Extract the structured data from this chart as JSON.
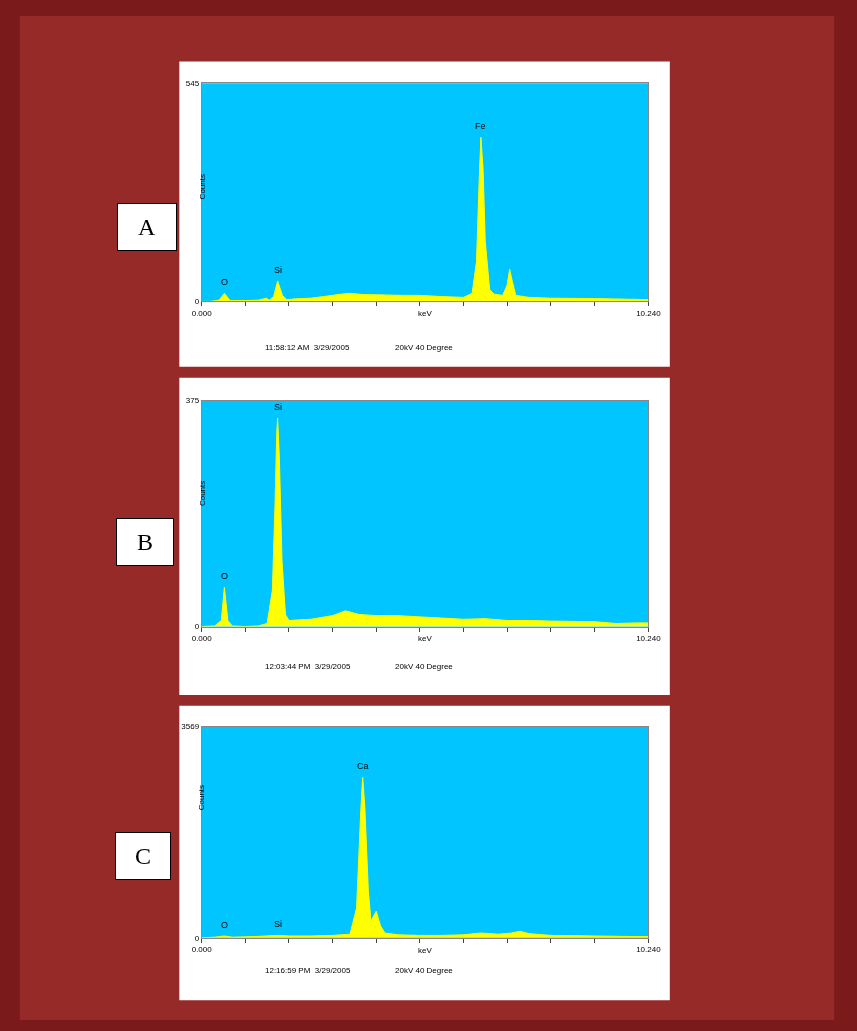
{
  "chart_data": [
    {
      "type": "area",
      "title": "A",
      "xlabel": "keV",
      "ylabel": "Counts",
      "color": "#ffff00",
      "x": [
        0,
        0.2,
        0.4,
        0.52,
        0.65,
        1.0,
        1.3,
        1.48,
        1.55,
        1.65,
        1.74,
        1.85,
        1.95,
        2.1,
        2.5,
        2.8,
        3.2,
        3.4,
        3.7,
        4.2,
        4.6,
        5.0,
        5.5,
        6.0,
        6.2,
        6.3,
        6.36,
        6.4,
        6.45,
        6.5,
        6.6,
        6.7,
        6.9,
        7.0,
        7.06,
        7.12,
        7.2,
        7.5,
        8.0,
        9.0,
        10.0,
        10.24
      ],
      "values": [
        0,
        0,
        3,
        20,
        2,
        2,
        3,
        8,
        3,
        12,
        51,
        15,
        4,
        6,
        8,
        12,
        18,
        20,
        17,
        16,
        15,
        15,
        12,
        10,
        20,
        100,
        300,
        410,
        330,
        150,
        30,
        18,
        15,
        40,
        80,
        50,
        15,
        10,
        8,
        7,
        5,
        4
      ],
      "xlim": [
        0,
        10.24
      ],
      "ylim": [
        0,
        545
      ],
      "xticks": [
        {
          "value": 0,
          "label": "0.000"
        },
        {
          "value": 1,
          "label": null
        },
        {
          "value": 2,
          "label": null
        },
        {
          "value": 3,
          "label": null
        },
        {
          "value": 4,
          "label": null
        },
        {
          "value": 5,
          "label": null
        },
        {
          "value": 6,
          "label": null
        },
        {
          "value": 7,
          "label": null
        },
        {
          "value": 8,
          "label": null
        },
        {
          "value": 9,
          "label": null
        },
        {
          "value": 10.24,
          "label": "10.240"
        }
      ],
      "yticks": [
        0,
        545
      ],
      "annotations": [
        {
          "text": "O",
          "x": 0.52,
          "y": 20
        },
        {
          "text": "Si",
          "x": 1.74,
          "y": 51
        },
        {
          "text": "Fe",
          "x": 6.4,
          "y": 410
        },
        "11:58:12 AM  3/29/2005",
        "20kV 40 Degree"
      ]
    },
    {
      "type": "area",
      "title": "B",
      "xlabel": "keV",
      "ylabel": "Counts",
      "color": "#ffff00",
      "x": [
        0,
        0.3,
        0.45,
        0.52,
        0.6,
        0.7,
        1.0,
        1.3,
        1.5,
        1.62,
        1.68,
        1.72,
        1.74,
        1.78,
        1.84,
        1.92,
        2.0,
        2.5,
        3.0,
        3.3,
        3.6,
        4.0,
        4.5,
        5.0,
        5.5,
        6.0,
        6.5,
        7.0,
        7.5,
        8.0,
        9.0,
        9.5,
        10.0,
        10.24
      ],
      "values": [
        0,
        1,
        10,
        65,
        10,
        1,
        0,
        1,
        5,
        60,
        200,
        320,
        346,
        280,
        110,
        20,
        10,
        12,
        18,
        26,
        20,
        18,
        18,
        16,
        14,
        12,
        13,
        10,
        10,
        9,
        8,
        5,
        6,
        6
      ],
      "xlim": [
        0,
        10.24
      ],
      "ylim": [
        0,
        375
      ],
      "xticks": [
        {
          "value": 0,
          "label": "0.000"
        },
        {
          "value": 1,
          "label": null
        },
        {
          "value": 2,
          "label": null
        },
        {
          "value": 3,
          "label": null
        },
        {
          "value": 4,
          "label": null
        },
        {
          "value": 5,
          "label": null
        },
        {
          "value": 6,
          "label": null
        },
        {
          "value": 7,
          "label": null
        },
        {
          "value": 8,
          "label": null
        },
        {
          "value": 9,
          "label": null
        },
        {
          "value": 10.24,
          "label": "10.240"
        }
      ],
      "yticks": [
        0,
        375
      ],
      "annotations": [
        {
          "text": "O",
          "x": 0.52,
          "y": 65
        },
        {
          "text": "Si",
          "x": 1.74,
          "y": 346
        },
        "12:03:44 PM  3/29/2005",
        "20kV 40 Degree"
      ]
    },
    {
      "type": "area",
      "title": "C",
      "xlabel": "keV",
      "ylabel": "Counts",
      "color": "#ffff00",
      "x": [
        0,
        0.3,
        0.52,
        0.7,
        1.2,
        1.74,
        2.0,
        2.5,
        3.0,
        3.4,
        3.55,
        3.65,
        3.69,
        3.74,
        3.82,
        3.88,
        4.0,
        4.1,
        4.2,
        4.5,
        5.0,
        5.5,
        6.0,
        6.4,
        6.8,
        7.1,
        7.3,
        7.5,
        8.0,
        9.0,
        10.0,
        10.24
      ],
      "values": [
        0,
        10,
        30,
        10,
        20,
        40,
        30,
        30,
        40,
        60,
        500,
        2200,
        2710,
        2200,
        800,
        280,
        450,
        200,
        80,
        50,
        40,
        40,
        50,
        80,
        60,
        80,
        110,
        70,
        40,
        30,
        20,
        20
      ],
      "xlim": [
        0,
        10.24
      ],
      "ylim": [
        0,
        3569
      ],
      "xticks": [
        {
          "value": 0,
          "label": "0.000"
        },
        {
          "value": 1,
          "label": null
        },
        {
          "value": 2,
          "label": null
        },
        {
          "value": 3,
          "label": null
        },
        {
          "value": 4,
          "label": null
        },
        {
          "value": 5,
          "label": null
        },
        {
          "value": 6,
          "label": null
        },
        {
          "value": 7,
          "label": null
        },
        {
          "value": 8,
          "label": null
        },
        {
          "value": 9,
          "label": null
        },
        {
          "value": 10.24,
          "label": "10.240"
        }
      ],
      "yticks": [
        0,
        3569
      ],
      "annotations": [
        {
          "text": "O",
          "x": 0.52,
          "y": 30
        },
        {
          "text": "Si",
          "x": 1.74,
          "y": 45
        },
        {
          "text": "Ca",
          "x": 3.69,
          "y": 2710
        },
        "12:16:59 PM  3/29/2005",
        "20kV 40 Degree"
      ]
    }
  ]
}
